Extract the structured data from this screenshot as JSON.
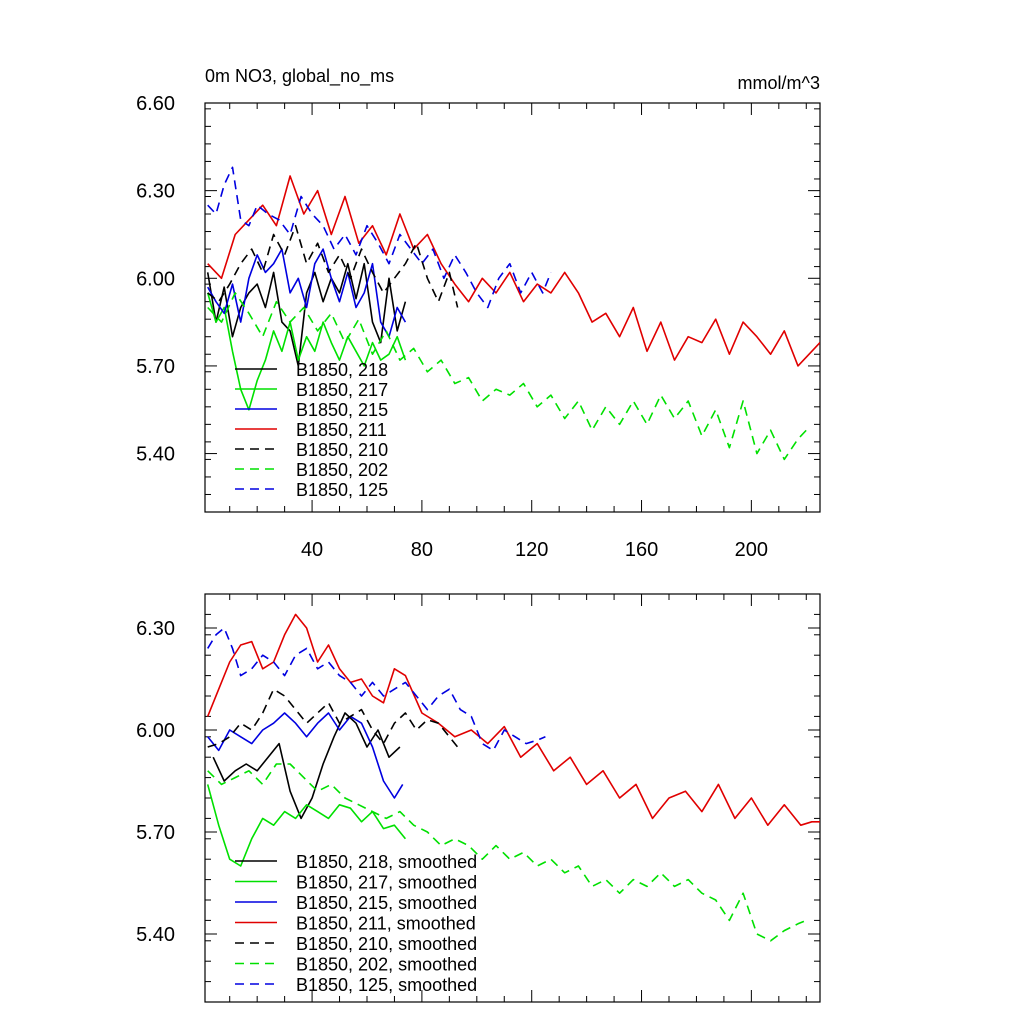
{
  "chart_data": [
    {
      "type": "line",
      "title": "0m NO3, global_no_ms",
      "units": "mmol/m^3",
      "xlim": [
        1,
        225
      ],
      "ylim": [
        5.2,
        6.6
      ],
      "xticks": [
        40,
        80,
        120,
        160,
        200
      ],
      "xtick_labels": [
        "40",
        "80",
        "120",
        "160",
        "200"
      ],
      "yticks": [
        5.4,
        5.7,
        6.0,
        6.3,
        6.6
      ],
      "ytick_labels": [
        "5.40",
        "5.70",
        "6.00",
        "6.30",
        "6.60"
      ],
      "legend_position": "lower-left",
      "series": [
        {
          "name": "B1850, 218",
          "color": "#000000",
          "dash": "solid",
          "x": [
            2,
            5,
            8,
            11,
            14,
            17,
            20,
            23,
            26,
            29,
            32,
            35,
            38,
            41,
            44,
            47,
            50,
            53,
            56,
            59,
            62,
            65,
            68,
            71,
            74
          ],
          "y": [
            6.02,
            5.85,
            5.97,
            5.8,
            5.9,
            5.95,
            5.98,
            5.9,
            6.02,
            5.85,
            5.82,
            5.7,
            5.95,
            6.02,
            5.92,
            6.0,
            5.95,
            6.05,
            5.93,
            6.05,
            5.85,
            5.78,
            6.0,
            5.82,
            5.92
          ]
        },
        {
          "name": "B1850, 217",
          "color": "#00e000",
          "dash": "solid",
          "x": [
            2,
            5,
            8,
            11,
            14,
            17,
            20,
            23,
            26,
            29,
            32,
            35,
            38,
            41,
            44,
            47,
            50,
            53,
            56,
            59,
            62,
            65,
            68,
            71,
            74
          ],
          "y": [
            5.95,
            5.85,
            5.9,
            5.75,
            5.62,
            5.55,
            5.65,
            5.72,
            5.82,
            5.75,
            5.85,
            5.72,
            5.8,
            5.75,
            5.85,
            5.78,
            5.72,
            5.8,
            5.75,
            5.7,
            5.78,
            5.72,
            5.74,
            5.8,
            5.72
          ]
        },
        {
          "name": "B1850, 215",
          "color": "#0000e0",
          "dash": "solid",
          "x": [
            2,
            5,
            8,
            11,
            14,
            17,
            20,
            23,
            26,
            29,
            32,
            35,
            38,
            41,
            44,
            47,
            50,
            53,
            56,
            59,
            62,
            65,
            68,
            71,
            74
          ],
          "y": [
            5.97,
            5.92,
            5.88,
            5.98,
            5.85,
            6.0,
            6.08,
            6.02,
            6.05,
            6.1,
            5.95,
            6.0,
            5.9,
            6.05,
            6.1,
            6.0,
            5.92,
            6.02,
            5.9,
            5.95,
            6.05,
            5.85,
            5.8,
            5.9,
            5.85
          ]
        },
        {
          "name": "B1850, 211",
          "color": "#e00000",
          "dash": "solid",
          "x": [
            2,
            7,
            12,
            17,
            22,
            27,
            32,
            37,
            42,
            47,
            52,
            57,
            62,
            67,
            72,
            77,
            82,
            87,
            92,
            97,
            102,
            107,
            112,
            117,
            122,
            127,
            132,
            137,
            142,
            147,
            152,
            157,
            162,
            167,
            172,
            177,
            182,
            187,
            192,
            197,
            202,
            207,
            212,
            217,
            222,
            225
          ],
          "y": [
            6.05,
            6.0,
            6.15,
            6.2,
            6.25,
            6.18,
            6.35,
            6.22,
            6.3,
            6.15,
            6.28,
            6.12,
            6.18,
            6.08,
            6.22,
            6.1,
            6.15,
            6.05,
            5.98,
            5.92,
            6.0,
            5.95,
            6.02,
            5.92,
            5.98,
            5.95,
            6.02,
            5.95,
            5.85,
            5.88,
            5.8,
            5.9,
            5.75,
            5.85,
            5.72,
            5.8,
            5.78,
            5.86,
            5.74,
            5.85,
            5.8,
            5.74,
            5.82,
            5.7,
            5.75,
            5.78
          ]
        },
        {
          "name": "B1850, 210",
          "color": "#000000",
          "dash": "dash",
          "x": [
            2,
            6,
            10,
            14,
            18,
            22,
            26,
            30,
            34,
            38,
            42,
            46,
            50,
            54,
            58,
            62,
            66,
            70,
            74,
            78,
            82,
            86,
            90,
            93
          ],
          "y": [
            5.95,
            5.92,
            5.98,
            6.05,
            6.1,
            6.02,
            6.15,
            6.08,
            6.18,
            6.05,
            6.12,
            6.02,
            6.08,
            6.0,
            6.1,
            6.02,
            5.95,
            6.0,
            6.05,
            6.12,
            6.0,
            5.92,
            6.02,
            5.9
          ]
        },
        {
          "name": "B1850, 202",
          "color": "#00e000",
          "dash": "dash",
          "x": [
            2,
            7,
            12,
            17,
            22,
            27,
            32,
            37,
            42,
            47,
            52,
            57,
            62,
            67,
            72,
            77,
            82,
            87,
            92,
            97,
            102,
            107,
            112,
            117,
            122,
            127,
            132,
            137,
            142,
            147,
            152,
            157,
            162,
            167,
            172,
            177,
            182,
            187,
            192,
            197,
            202,
            207,
            212,
            217,
            220
          ],
          "y": [
            5.9,
            5.85,
            5.95,
            5.88,
            5.8,
            5.92,
            5.85,
            5.9,
            5.82,
            5.88,
            5.78,
            5.86,
            5.74,
            5.82,
            5.72,
            5.76,
            5.68,
            5.72,
            5.64,
            5.66,
            5.58,
            5.62,
            5.6,
            5.64,
            5.56,
            5.6,
            5.52,
            5.58,
            5.48,
            5.56,
            5.5,
            5.58,
            5.5,
            5.6,
            5.52,
            5.58,
            5.46,
            5.55,
            5.42,
            5.58,
            5.4,
            5.48,
            5.38,
            5.45,
            5.48
          ]
        },
        {
          "name": "B1850, 125",
          "color": "#0000e0",
          "dash": "dash",
          "x": [
            2,
            5,
            8,
            11,
            14,
            17,
            20,
            24,
            28,
            32,
            36,
            40,
            44,
            48,
            52,
            56,
            60,
            64,
            68,
            72,
            76,
            80,
            84,
            88,
            92,
            96,
            100,
            104,
            108,
            112,
            116,
            120,
            124,
            127
          ],
          "y": [
            6.25,
            6.22,
            6.32,
            6.38,
            6.2,
            6.18,
            6.25,
            6.22,
            6.2,
            6.15,
            6.28,
            6.22,
            6.18,
            6.1,
            6.15,
            6.08,
            6.18,
            6.12,
            6.05,
            6.15,
            6.1,
            6.05,
            6.1,
            6.0,
            6.08,
            6.02,
            5.95,
            5.9,
            6.0,
            6.05,
            5.95,
            6.02,
            5.95,
            6.02
          ]
        }
      ]
    },
    {
      "type": "line",
      "title": "",
      "xlim": [
        1,
        225
      ],
      "ylim": [
        5.2,
        6.4
      ],
      "xticks": [
        40,
        80,
        120,
        160,
        200
      ],
      "yticks": [
        5.4,
        5.7,
        6.0,
        6.3
      ],
      "ytick_labels": [
        "5.40",
        "5.70",
        "6.00",
        "6.30"
      ],
      "legend_position": "lower-left",
      "series": [
        {
          "name": "B1850, 218, smoothed",
          "color": "#000000",
          "dash": "solid",
          "x": [
            4,
            8,
            12,
            16,
            20,
            24,
            28,
            32,
            36,
            40,
            44,
            48,
            52,
            56,
            60,
            64,
            68,
            72
          ],
          "y": [
            5.92,
            5.85,
            5.88,
            5.9,
            5.88,
            5.92,
            5.96,
            5.82,
            5.74,
            5.8,
            5.9,
            5.98,
            6.05,
            6.02,
            5.95,
            6.0,
            5.92,
            5.95
          ]
        },
        {
          "name": "B1850, 217, smoothed",
          "color": "#00e000",
          "dash": "solid",
          "x": [
            2,
            6,
            10,
            14,
            18,
            22,
            26,
            30,
            34,
            38,
            42,
            46,
            50,
            54,
            58,
            62,
            66,
            70,
            74
          ],
          "y": [
            5.84,
            5.72,
            5.62,
            5.6,
            5.68,
            5.74,
            5.72,
            5.76,
            5.74,
            5.78,
            5.76,
            5.74,
            5.78,
            5.77,
            5.73,
            5.76,
            5.71,
            5.72,
            5.68
          ]
        },
        {
          "name": "B1850, 215, smoothed",
          "color": "#0000e0",
          "dash": "solid",
          "x": [
            2,
            6,
            10,
            14,
            18,
            22,
            26,
            30,
            34,
            38,
            42,
            46,
            50,
            54,
            58,
            62,
            66,
            70,
            73
          ],
          "y": [
            5.98,
            5.94,
            6.0,
            5.98,
            5.96,
            6.0,
            6.02,
            6.05,
            6.02,
            5.98,
            6.02,
            6.05,
            6.0,
            6.04,
            6.02,
            5.95,
            5.85,
            5.8,
            5.84
          ]
        },
        {
          "name": "B1850, 211, smoothed",
          "color": "#e00000",
          "dash": "solid",
          "x": [
            2,
            6,
            10,
            14,
            18,
            22,
            26,
            30,
            34,
            38,
            42,
            46,
            50,
            54,
            58,
            62,
            66,
            70,
            74,
            80,
            86,
            92,
            98,
            104,
            110,
            116,
            122,
            128,
            134,
            140,
            146,
            152,
            158,
            164,
            170,
            176,
            182,
            188,
            194,
            200,
            206,
            212,
            218,
            222,
            225
          ],
          "y": [
            6.04,
            6.12,
            6.2,
            6.25,
            6.26,
            6.18,
            6.2,
            6.28,
            6.34,
            6.3,
            6.2,
            6.25,
            6.18,
            6.14,
            6.15,
            6.1,
            6.08,
            6.18,
            6.16,
            6.05,
            6.02,
            5.98,
            6.0,
            5.96,
            6.01,
            5.92,
            5.96,
            5.88,
            5.92,
            5.84,
            5.88,
            5.8,
            5.84,
            5.74,
            5.8,
            5.82,
            5.76,
            5.84,
            5.74,
            5.8,
            5.72,
            5.78,
            5.72,
            5.73,
            5.73
          ]
        },
        {
          "name": "B1850, 210, smoothed",
          "color": "#000000",
          "dash": "dash",
          "x": [
            2,
            6,
            10,
            14,
            18,
            22,
            26,
            30,
            34,
            38,
            42,
            46,
            50,
            54,
            58,
            62,
            66,
            70,
            74,
            78,
            82,
            86,
            90,
            93
          ],
          "y": [
            5.95,
            5.96,
            5.98,
            6.02,
            6.0,
            6.05,
            6.12,
            6.1,
            6.06,
            6.02,
            6.05,
            6.08,
            6.02,
            6.04,
            6.06,
            6.0,
            5.96,
            6.02,
            6.05,
            6.0,
            6.03,
            6.02,
            5.98,
            5.95
          ]
        },
        {
          "name": "B1850, 202, smoothed",
          "color": "#00e000",
          "dash": "dash",
          "x": [
            2,
            7,
            12,
            17,
            22,
            27,
            32,
            37,
            42,
            47,
            52,
            57,
            62,
            67,
            72,
            77,
            82,
            87,
            92,
            97,
            102,
            107,
            112,
            117,
            122,
            127,
            132,
            137,
            142,
            147,
            152,
            157,
            162,
            167,
            172,
            177,
            182,
            187,
            192,
            197,
            202,
            207,
            212,
            217,
            220
          ],
          "y": [
            5.88,
            5.84,
            5.86,
            5.88,
            5.84,
            5.9,
            5.9,
            5.86,
            5.82,
            5.84,
            5.8,
            5.78,
            5.76,
            5.74,
            5.76,
            5.72,
            5.7,
            5.66,
            5.68,
            5.66,
            5.62,
            5.66,
            5.62,
            5.64,
            5.6,
            5.62,
            5.58,
            5.6,
            5.54,
            5.56,
            5.52,
            5.56,
            5.54,
            5.58,
            5.54,
            5.56,
            5.52,
            5.5,
            5.44,
            5.52,
            5.4,
            5.38,
            5.41,
            5.43,
            5.44
          ]
        },
        {
          "name": "B1850, 125, smoothed",
          "color": "#0000e0",
          "dash": "dash",
          "x": [
            2,
            5,
            8,
            11,
            14,
            18,
            22,
            26,
            30,
            34,
            38,
            42,
            46,
            50,
            54,
            58,
            62,
            66,
            70,
            74,
            78,
            82,
            86,
            90,
            94,
            98,
            102,
            106,
            110,
            114,
            118,
            122,
            125
          ],
          "y": [
            6.24,
            6.28,
            6.3,
            6.24,
            6.16,
            6.18,
            6.22,
            6.2,
            6.16,
            6.22,
            6.24,
            6.18,
            6.2,
            6.16,
            6.14,
            6.1,
            6.14,
            6.1,
            6.12,
            6.14,
            6.1,
            6.06,
            6.1,
            6.12,
            6.06,
            6.04,
            5.96,
            5.94,
            6.0,
            5.98,
            5.96,
            5.97,
            5.98
          ]
        }
      ]
    }
  ]
}
